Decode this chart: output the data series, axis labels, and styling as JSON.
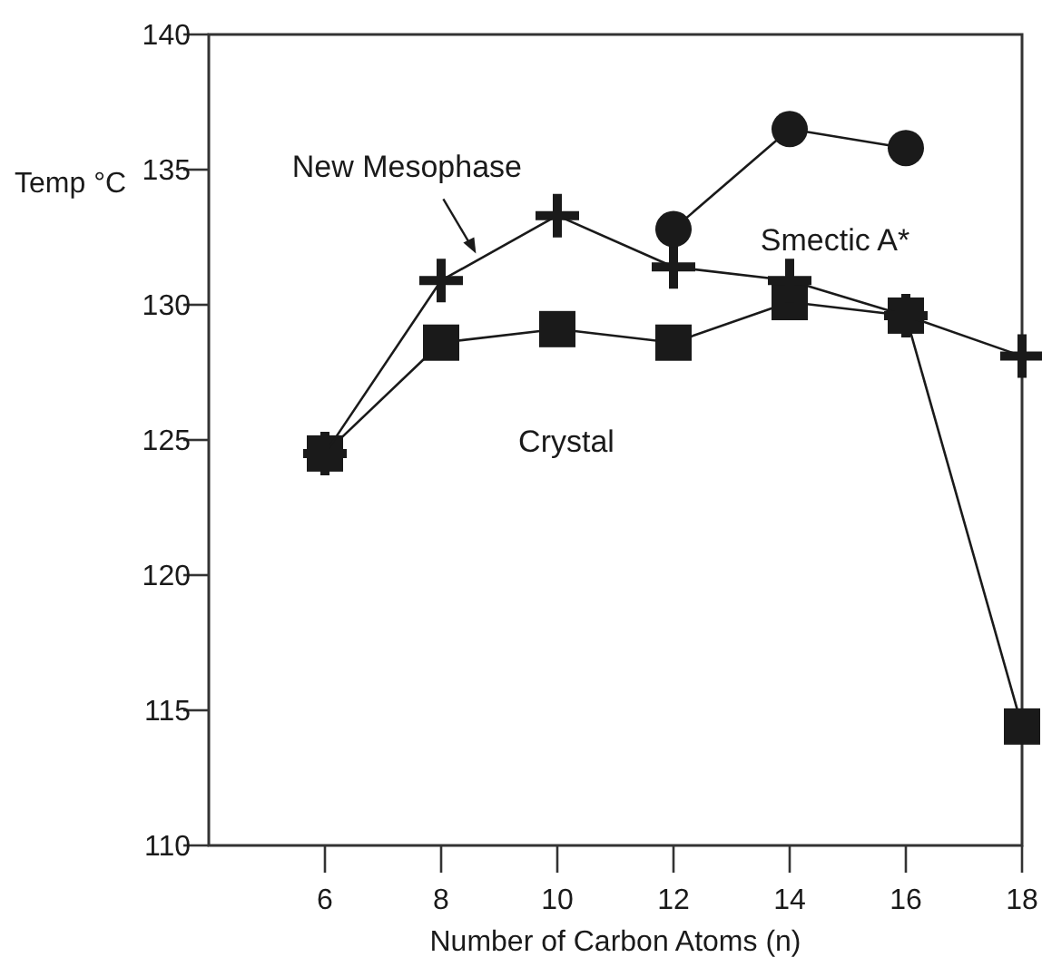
{
  "chart_data": {
    "type": "line",
    "xlabel": "Number of Carbon Atoms (n)",
    "ylabel": "Temp °C",
    "xlim": [
      4,
      18
    ],
    "xticks": [
      6,
      8,
      10,
      12,
      14,
      16,
      18
    ],
    "ylim": [
      110,
      140
    ],
    "yticks": [
      110,
      115,
      120,
      125,
      130,
      135,
      140
    ],
    "grid": false,
    "series": [
      {
        "color": "#1a1a1a",
        "marker": "square",
        "x": [
          6,
          8,
          10,
          12,
          14,
          16,
          18
        ],
        "values": [
          124.5,
          128.6,
          129.1,
          128.6,
          130.1,
          129.6,
          114.4
        ]
      },
      {
        "color": "#1a1a1a",
        "marker": "cross",
        "x": [
          6,
          8,
          10,
          12,
          14,
          16,
          18
        ],
        "values": [
          124.5,
          130.9,
          133.3,
          131.4,
          130.9,
          129.6,
          128.1
        ]
      },
      {
        "color": "#1a1a1a",
        "marker": "circle",
        "x": [
          12,
          14,
          16
        ],
        "values": [
          132.8,
          136.5,
          135.8
        ]
      }
    ],
    "annotations": [
      {
        "text": "New Mesophase",
        "x": 8.6,
        "y": 131.9
      },
      "Smectic A*",
      "Crystal"
    ]
  }
}
